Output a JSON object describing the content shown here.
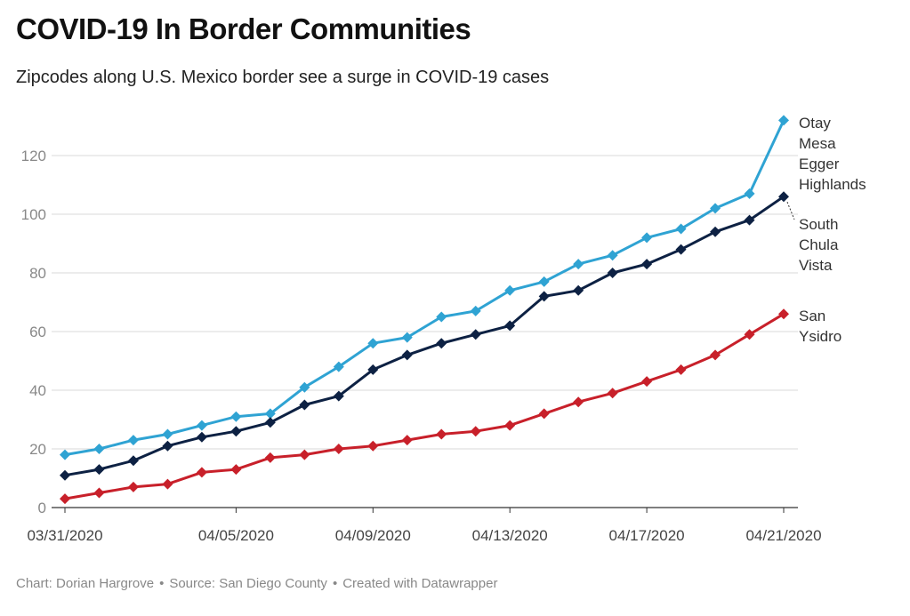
{
  "header": {
    "title": "COVID-19 In Border Communities",
    "subtitle": "Zipcodes along U.S. Mexico border see a surge in COVID-19 cases"
  },
  "footer": {
    "chart_credit": "Chart: Dorian Hargrove",
    "source": "Source: San Diego County",
    "tool": "Created with Datawrapper",
    "separator": "•"
  },
  "chart_data": {
    "type": "line",
    "title": "COVID-19 In Border Communities",
    "subtitle": "Zipcodes along U.S. Mexico border see a surge in COVID-19 cases",
    "x": [
      "03/31/2020",
      "04/01/2020",
      "04/02/2020",
      "04/03/2020",
      "04/04/2020",
      "04/05/2020",
      "04/06/2020",
      "04/07/2020",
      "04/08/2020",
      "04/09/2020",
      "04/10/2020",
      "04/11/2020",
      "04/12/2020",
      "04/13/2020",
      "04/14/2020",
      "04/15/2020",
      "04/16/2020",
      "04/17/2020",
      "04/18/2020",
      "04/19/2020",
      "04/20/2020",
      "04/21/2020"
    ],
    "x_tick_labels": [
      "03/31/2020",
      "04/05/2020",
      "04/09/2020",
      "04/13/2020",
      "04/17/2020",
      "04/21/2020"
    ],
    "y_ticks": [
      0,
      20,
      40,
      60,
      80,
      100,
      120
    ],
    "ylim": [
      0,
      135
    ],
    "grid": true,
    "series": [
      {
        "name": "Otay Mesa Egger Highlands",
        "label_lines": [
          "Otay",
          "Mesa",
          "Egger",
          "Highlands"
        ],
        "color": "#2fa3d3",
        "values": [
          18,
          20,
          23,
          25,
          28,
          31,
          32,
          41,
          48,
          56,
          58,
          65,
          67,
          74,
          77,
          83,
          86,
          92,
          95,
          102,
          107,
          132
        ]
      },
      {
        "name": "South Chula Vista",
        "label_lines": [
          "South",
          "Chula",
          "Vista"
        ],
        "color": "#0d2143",
        "values": [
          11,
          13,
          16,
          21,
          24,
          26,
          29,
          35,
          38,
          47,
          52,
          56,
          59,
          62,
          72,
          74,
          80,
          83,
          88,
          94,
          98,
          106
        ]
      },
      {
        "name": "San Ysidro",
        "label_lines": [
          "San",
          "Ysidro"
        ],
        "color": "#c8202a",
        "values": [
          3,
          5,
          7,
          8,
          12,
          13,
          17,
          18,
          20,
          21,
          23,
          25,
          26,
          28,
          32,
          36,
          39,
          43,
          47,
          52,
          59,
          66
        ]
      }
    ]
  }
}
